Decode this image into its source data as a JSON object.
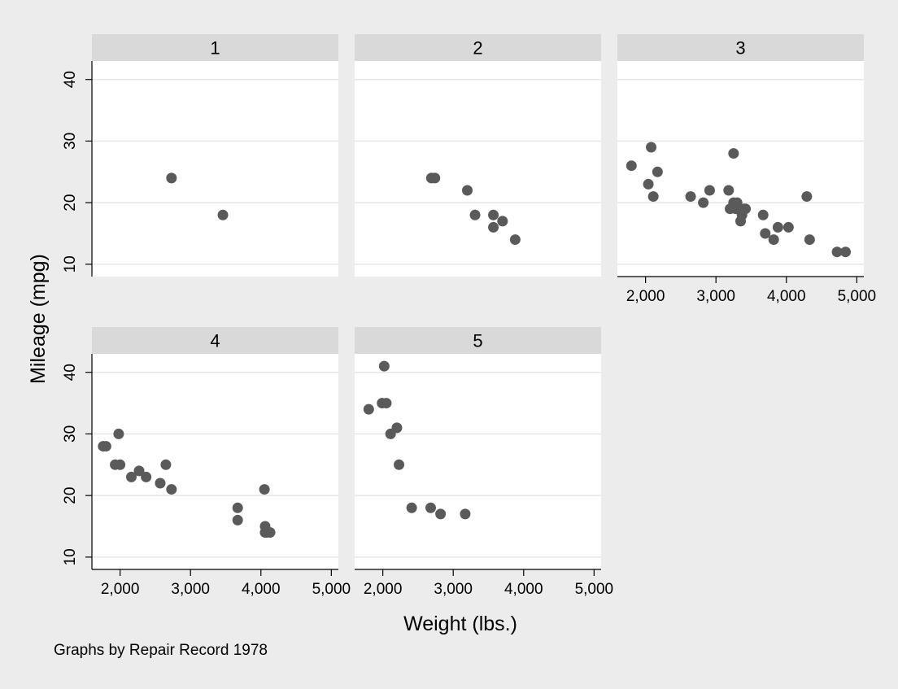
{
  "chart_data": {
    "type": "scatter",
    "ylabel": "Mileage (mpg)",
    "xlabel": "Weight (lbs.)",
    "note": "Graphs by Repair Record 1978",
    "xlim": [
      1600,
      5100
    ],
    "ylim": [
      8,
      43
    ],
    "xticks": [
      2000,
      3000,
      4000,
      5000
    ],
    "xtick_labels": [
      "2,000",
      "3,000",
      "4,000",
      "5,000"
    ],
    "yticks": [
      10,
      20,
      30,
      40
    ],
    "ytick_labels": [
      "10",
      "20",
      "30",
      "40"
    ],
    "grid": true,
    "marker_color": "#5a5a5a",
    "panels": [
      {
        "label": "1",
        "points": [
          [
            2730,
            24
          ],
          [
            3460,
            18
          ]
        ]
      },
      {
        "label": "2",
        "points": [
          [
            2690,
            24
          ],
          [
            2740,
            24
          ],
          [
            3200,
            22
          ],
          [
            3310,
            18
          ],
          [
            3570,
            18
          ],
          [
            3570,
            16
          ],
          [
            3700,
            17
          ],
          [
            3880,
            14
          ]
        ]
      },
      {
        "label": "3",
        "points": [
          [
            1800,
            26
          ],
          [
            2040,
            23
          ],
          [
            2080,
            29
          ],
          [
            2110,
            21
          ],
          [
            2170,
            25
          ],
          [
            2640,
            21
          ],
          [
            2820,
            20
          ],
          [
            2910,
            22
          ],
          [
            3180,
            22
          ],
          [
            3200,
            19
          ],
          [
            3250,
            28
          ],
          [
            3250,
            20
          ],
          [
            3280,
            19
          ],
          [
            3300,
            20
          ],
          [
            3350,
            17
          ],
          [
            3370,
            18
          ],
          [
            3400,
            19
          ],
          [
            3420,
            19
          ],
          [
            3670,
            18
          ],
          [
            3700,
            15
          ],
          [
            3820,
            14
          ],
          [
            3880,
            16
          ],
          [
            4030,
            16
          ],
          [
            4290,
            21
          ],
          [
            4330,
            14
          ],
          [
            4720,
            12
          ],
          [
            4840,
            12
          ]
        ]
      },
      {
        "label": "4",
        "points": [
          [
            1760,
            28
          ],
          [
            1800,
            28
          ],
          [
            1930,
            25
          ],
          [
            1980,
            30
          ],
          [
            2000,
            25
          ],
          [
            2160,
            23
          ],
          [
            2270,
            24
          ],
          [
            2370,
            23
          ],
          [
            2570,
            22
          ],
          [
            2650,
            25
          ],
          [
            2730,
            21
          ],
          [
            3670,
            18
          ],
          [
            3670,
            16
          ],
          [
            4050,
            21
          ],
          [
            4060,
            15
          ],
          [
            4060,
            14
          ],
          [
            4080,
            14
          ],
          [
            4130,
            14
          ]
        ]
      },
      {
        "label": "5",
        "points": [
          [
            1800,
            34
          ],
          [
            1990,
            35
          ],
          [
            2020,
            41
          ],
          [
            2050,
            35
          ],
          [
            2110,
            30
          ],
          [
            2200,
            31
          ],
          [
            2230,
            25
          ],
          [
            2410,
            18
          ],
          [
            2680,
            18
          ],
          [
            2820,
            17
          ],
          [
            3170,
            17
          ]
        ]
      }
    ]
  }
}
